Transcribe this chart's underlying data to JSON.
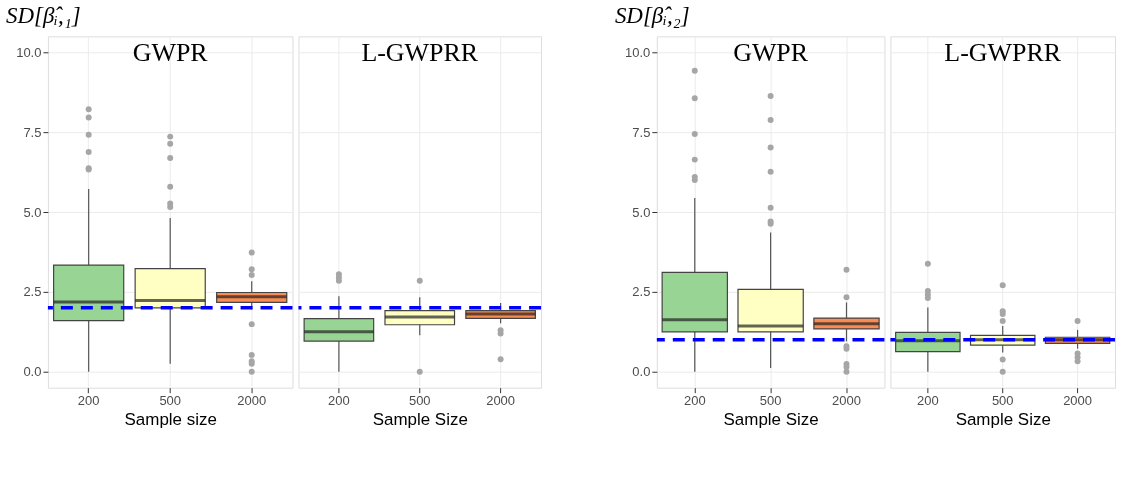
{
  "chart_data": [
    {
      "type": "box",
      "title": "GWPR",
      "ylabel": "SD[β̂ᵢ,₁]",
      "xlabel": "Sample size",
      "categories": [
        "200",
        "500",
        "2000"
      ],
      "colors": [
        "#98d594",
        "#ffffc4",
        "#f98b54"
      ],
      "boxes": [
        {
          "low": 0,
          "q1": 1.6,
          "median": 2.18,
          "q3": 3.34,
          "high": 5.72,
          "outliers": [
            8.22,
            7.96,
            7.42,
            6.88,
            6.37,
            6.33
          ]
        },
        {
          "low": 0.25,
          "q1": 2.0,
          "median": 2.23,
          "q3": 3.23,
          "high": 4.81,
          "outliers": [
            7.36,
            7.14,
            6.69,
            5.79,
            5.27,
            5.16
          ]
        },
        {
          "low": 1.95,
          "q1": 2.17,
          "median": 2.35,
          "q3": 2.48,
          "high": 2.83,
          "outliers": [
            3.73,
            3.21,
            3.03,
            1.49,
            0.52,
            0.33,
            0.25,
            0
          ]
        }
      ],
      "ylim": [
        -0.5,
        10.5
      ],
      "yticks": [
        {
          "value": 0,
          "label": "0.0"
        },
        {
          "value": 2.5,
          "label": "2.5"
        },
        {
          "value": 5,
          "label": "5.0"
        },
        {
          "value": 7.5,
          "label": "7.5"
        },
        {
          "value": 10,
          "label": "10.0"
        }
      ],
      "grid": true,
      "ref_lines": [
        {
          "axis": "y",
          "value": 2,
          "color": "#0000ff",
          "line_style": "dashed"
        }
      ]
    },
    {
      "type": "box",
      "title": "L-GWPRR",
      "xlabel": "Sample Size",
      "categories": [
        "200",
        "500",
        "2000"
      ],
      "colors": [
        "#98d594",
        "#ffffc4",
        "#f98b54"
      ],
      "boxes": [
        {
          "low": 0,
          "q1": 0.96,
          "median": 1.25,
          "q3": 1.66,
          "high": 2.36,
          "outliers": [
            3.05,
            2.95,
            2.85
          ]
        },
        {
          "low": 1.14,
          "q1": 1.47,
          "median": 1.71,
          "q3": 1.91,
          "high": 2.33,
          "outliers": [
            2.85,
            0
          ]
        },
        {
          "low": 1.52,
          "q1": 1.67,
          "median": 1.81,
          "q3": 1.91,
          "high": 2.15,
          "outliers": [
            1.3,
            1.2,
            0.39
          ]
        }
      ],
      "ylim": [
        -0.5,
        10.5
      ],
      "yticks": [
        0,
        2.5,
        5,
        7.5,
        10
      ],
      "grid": true,
      "tick_labels": "x",
      "ref_lines": [
        {
          "axis": "y",
          "value": 2,
          "color": "#0000ff",
          "line_style": "dashed"
        }
      ]
    },
    {
      "type": "box",
      "title": "GWPR",
      "ylabel": "SD[β̂ᵢ,₂]",
      "xlabel": "Sample Size",
      "categories": [
        "200",
        "500",
        "2000"
      ],
      "colors": [
        "#98d594",
        "#ffffc4",
        "#f98b54"
      ],
      "boxes": [
        {
          "low": 0,
          "q1": 1.25,
          "median": 1.63,
          "q3": 3.11,
          "high": 5.44,
          "outliers": [
            9.42,
            8.56,
            7.44,
            6.64,
            6.1,
            6.0
          ]
        },
        {
          "low": 0.12,
          "q1": 1.25,
          "median": 1.43,
          "q3": 2.58,
          "high": 4.36,
          "outliers": [
            8.63,
            7.88,
            7.02,
            6.26,
            5.13,
            4.7,
            4.63
          ]
        },
        {
          "low": 0.95,
          "q1": 1.34,
          "median": 1.5,
          "q3": 1.68,
          "high": 2.17,
          "outliers": [
            3.19,
            2.33,
            0.8,
            0.72,
            0.24,
            0.15,
            0
          ]
        }
      ],
      "ylim": [
        -0.5,
        10.5
      ],
      "yticks": [
        {
          "value": 0,
          "label": "0.0"
        },
        {
          "value": 2.5,
          "label": "2.5"
        },
        {
          "value": 5,
          "label": "5.0"
        },
        {
          "value": 7.5,
          "label": "7.5"
        },
        {
          "value": 10,
          "label": "10.0"
        }
      ],
      "grid": true,
      "ref_lines": [
        {
          "axis": "y",
          "value": 1,
          "color": "#0000ff",
          "line_style": "dashed"
        }
      ]
    },
    {
      "type": "box",
      "title": "L-GWPRR",
      "xlabel": "Sample Size",
      "categories": [
        "200",
        "500",
        "2000"
      ],
      "colors": [
        "#98d594",
        "#ffffc4",
        "#f98b54"
      ],
      "boxes": [
        {
          "low": 0,
          "q1": 0.63,
          "median": 0.97,
          "q3": 1.23,
          "high": 2.01,
          "outliers": [
            3.38,
            2.53,
            2.41,
            2.31
          ]
        },
        {
          "low": 0.6,
          "q1": 0.83,
          "median": 1.0,
          "q3": 1.14,
          "high": 1.43,
          "outliers": [
            2.71,
            1.89,
            1.81,
            1.59,
            0.38,
            0
          ]
        },
        {
          "low": 0.72,
          "q1": 0.89,
          "median": 1.0,
          "q3": 1.08,
          "high": 1.31,
          "outliers": [
            1.59,
            0.57,
            0.45,
            0.33
          ]
        }
      ],
      "ylim": [
        -0.5,
        10.5
      ],
      "yticks": [
        0,
        2.5,
        5,
        7.5,
        10
      ],
      "grid": true,
      "tick_labels": "x",
      "ref_lines": [
        {
          "axis": "y",
          "value": 1,
          "color": "#0000ff",
          "line_style": "dashed"
        }
      ]
    }
  ]
}
